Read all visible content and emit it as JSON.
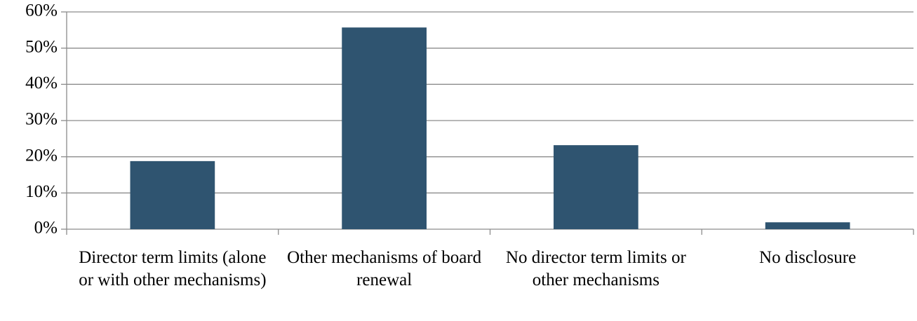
{
  "chart_data": {
    "type": "bar",
    "categories": [
      "Director term limits (alone or with other mechanisms)",
      "Other mechanisms of board renewal",
      "No director term limits or other mechanisms",
      "No disclosure"
    ],
    "values": [
      18.8,
      55.7,
      23.2,
      1.9
    ],
    "color": "#2f5470",
    "ylim": [
      0,
      60
    ],
    "yticks": [
      {
        "value": 0,
        "label": "0%"
      },
      {
        "value": 10,
        "label": "10%"
      },
      {
        "value": 20,
        "label": "20%"
      },
      {
        "value": 30,
        "label": "30%"
      },
      {
        "value": 40,
        "label": "40%"
      },
      {
        "value": 50,
        "label": "50%"
      },
      {
        "value": 60,
        "label": "60%"
      }
    ],
    "grid": true
  }
}
